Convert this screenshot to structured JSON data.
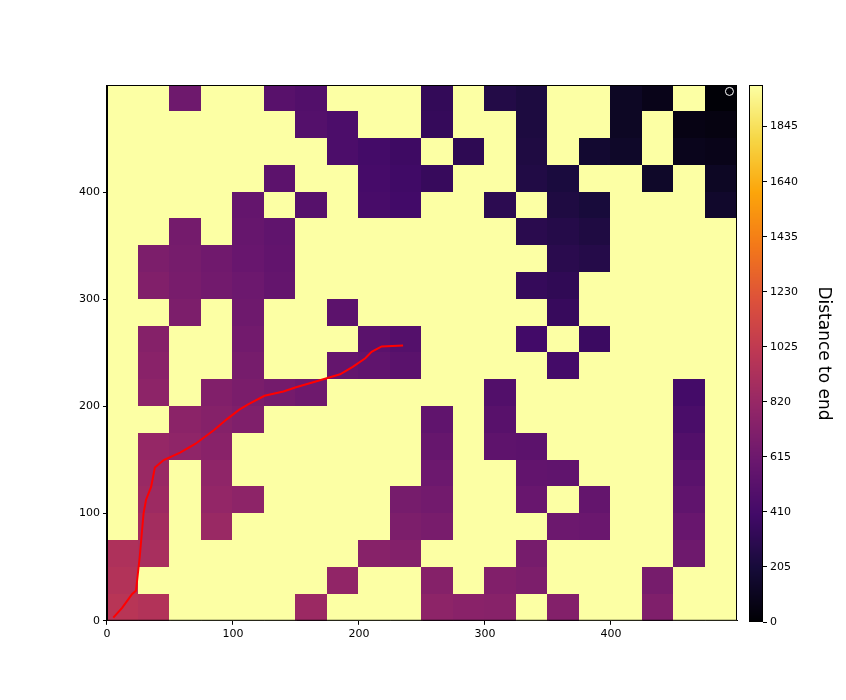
{
  "chart_data": {
    "type": "heatmap",
    "xlim": [
      0,
      500
    ],
    "ylim": [
      0,
      500
    ],
    "xticks": [
      0,
      100,
      200,
      300,
      400
    ],
    "yticks": [
      0,
      100,
      200,
      300,
      400
    ],
    "grid": false,
    "colorbar": {
      "label": "Distance to end",
      "range": [
        0,
        2000
      ],
      "ticks": [
        0,
        205,
        410,
        615,
        820,
        1025,
        1230,
        1435,
        1640,
        1845
      ]
    },
    "cells": [
      [
        2000,
        2000,
        620,
        2000,
        2000,
        510,
        480,
        2000,
        2000,
        2000,
        330,
        2000,
        260,
        230,
        2000,
        2000,
        120,
        80,
        2000,
        10
      ],
      [
        2000,
        2000,
        2000,
        2000,
        2000,
        2000,
        490,
        450,
        2000,
        2000,
        340,
        2000,
        2000,
        230,
        2000,
        2000,
        120,
        2000,
        60,
        50
      ],
      [
        2000,
        2000,
        2000,
        2000,
        2000,
        2000,
        2000,
        450,
        410,
        380,
        2000,
        310,
        2000,
        240,
        2000,
        170,
        140,
        2000,
        90,
        80
      ],
      [
        2000,
        2000,
        2000,
        2000,
        2000,
        530,
        2000,
        2000,
        420,
        390,
        350,
        2000,
        2000,
        250,
        220,
        2000,
        2000,
        140,
        2000,
        120
      ],
      [
        2000,
        2000,
        2000,
        2000,
        570,
        2000,
        500,
        2000,
        430,
        400,
        2000,
        2000,
        300,
        2000,
        240,
        210,
        2000,
        2000,
        2000,
        150
      ],
      [
        2000,
        2000,
        650,
        2000,
        580,
        550,
        2000,
        2000,
        2000,
        2000,
        2000,
        2000,
        2000,
        290,
        270,
        240,
        2000,
        2000,
        2000,
        2000
      ],
      [
        2000,
        690,
        660,
        630,
        590,
        560,
        2000,
        2000,
        2000,
        2000,
        2000,
        2000,
        2000,
        2000,
        290,
        270,
        2000,
        2000,
        2000,
        2000
      ],
      [
        2000,
        710,
        670,
        640,
        610,
        570,
        2000,
        2000,
        2000,
        2000,
        2000,
        2000,
        2000,
        340,
        320,
        2000,
        2000,
        2000,
        2000,
        2000
      ],
      [
        2000,
        2000,
        690,
        2000,
        620,
        2000,
        2000,
        530,
        2000,
        2000,
        2000,
        2000,
        2000,
        2000,
        350,
        2000,
        2000,
        2000,
        2000,
        2000
      ],
      [
        2000,
        730,
        2000,
        2000,
        640,
        2000,
        2000,
        2000,
        520,
        490,
        2000,
        2000,
        2000,
        400,
        2000,
        370,
        2000,
        2000,
        2000,
        2000
      ],
      [
        2000,
        750,
        2000,
        2000,
        660,
        2000,
        2000,
        570,
        550,
        520,
        2000,
        2000,
        2000,
        2000,
        410,
        2000,
        2000,
        2000,
        2000,
        2000
      ],
      [
        2000,
        770,
        2000,
        710,
        680,
        650,
        620,
        2000,
        2000,
        2000,
        2000,
        2000,
        480,
        2000,
        2000,
        2000,
        2000,
        2000,
        410,
        2000
      ],
      [
        2000,
        2000,
        760,
        730,
        700,
        2000,
        2000,
        2000,
        2000,
        2000,
        550,
        2000,
        510,
        2000,
        2000,
        2000,
        2000,
        2000,
        440,
        2000
      ],
      [
        2000,
        810,
        780,
        750,
        2000,
        2000,
        2000,
        2000,
        2000,
        2000,
        580,
        2000,
        540,
        530,
        2000,
        2000,
        2000,
        2000,
        480,
        2000
      ],
      [
        2000,
        830,
        2000,
        780,
        2000,
        2000,
        2000,
        2000,
        2000,
        2000,
        610,
        2000,
        2000,
        560,
        550,
        2000,
        2000,
        2000,
        520,
        2000
      ],
      [
        2000,
        850,
        2000,
        800,
        770,
        2000,
        2000,
        2000,
        2000,
        660,
        640,
        2000,
        2000,
        590,
        2000,
        570,
        2000,
        2000,
        550,
        2000
      ],
      [
        2000,
        880,
        2000,
        830,
        2000,
        2000,
        2000,
        2000,
        2000,
        690,
        670,
        2000,
        2000,
        2000,
        610,
        600,
        2000,
        2000,
        590,
        2000
      ],
      [
        930,
        900,
        2000,
        2000,
        2000,
        2000,
        2000,
        2000,
        740,
        720,
        2000,
        2000,
        2000,
        660,
        2000,
        2000,
        2000,
        2000,
        620,
        2000
      ],
      [
        950,
        2000,
        2000,
        2000,
        2000,
        2000,
        2000,
        790,
        2000,
        2000,
        730,
        2000,
        710,
        690,
        2000,
        2000,
        2000,
        660,
        2000,
        2000
      ],
      [
        980,
        950,
        2000,
        2000,
        2000,
        2000,
        840,
        2000,
        2000,
        2000,
        770,
        750,
        740,
        2000,
        720,
        2000,
        2000,
        700,
        2000,
        2000
      ]
    ],
    "path": {
      "color": "#ff0000",
      "x": [
        5,
        12,
        20,
        23,
        26,
        29,
        31,
        35,
        38,
        45,
        58,
        70,
        85,
        95,
        105,
        112,
        125,
        140,
        150,
        165,
        185,
        195,
        205,
        210,
        218,
        235
      ],
      "y": [
        3,
        12,
        25,
        28,
        60,
        100,
        113,
        125,
        143,
        150,
        157,
        165,
        178,
        188,
        197,
        202,
        210,
        214,
        218,
        223,
        230,
        237,
        245,
        251,
        256,
        257
      ]
    },
    "end": {
      "x": 494,
      "y": 494
    }
  }
}
